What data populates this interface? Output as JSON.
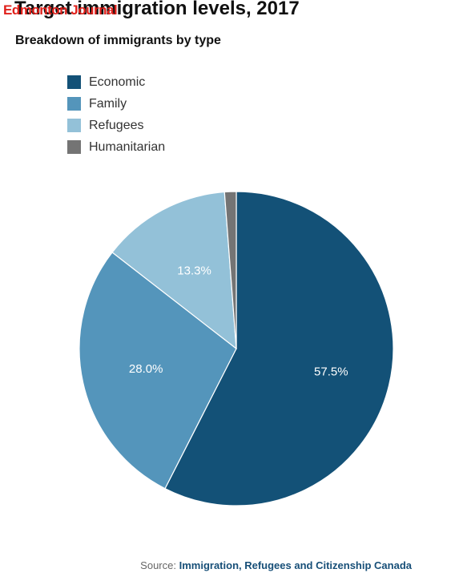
{
  "watermark": "Edmonton Journal",
  "chart_data": {
    "type": "pie",
    "title": "Target immigration levels, 2017",
    "subtitle": "Breakdown of immigrants by type",
    "legend_position": "top-left",
    "categories": [
      "Economic",
      "Family",
      "Refugees",
      "Humanitarian"
    ],
    "values": [
      57.5,
      28.0,
      13.3,
      1.2
    ],
    "data_labels": [
      "57.5%",
      "28.0%",
      "13.3%",
      ""
    ],
    "colors": [
      "#135177",
      "#5495bb",
      "#93c1d8",
      "#747474"
    ]
  },
  "source": {
    "prefix": "Source:",
    "name": "Immigration, Refugees and Citizenship Canada"
  }
}
